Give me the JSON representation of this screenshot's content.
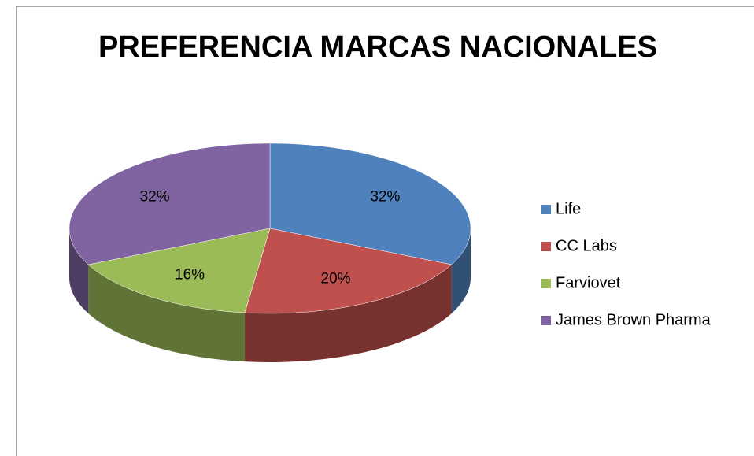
{
  "chart_data": {
    "type": "pie3d",
    "title": "PREFERENCIA MARCAS NACIONALES",
    "categories": [
      "Life",
      "CC Labs",
      "Farviovet",
      "James Brown Pharma"
    ],
    "values": [
      32,
      20,
      16,
      32
    ],
    "value_labels": [
      "32%",
      "20%",
      "16%",
      "32%"
    ],
    "colors": [
      "#4f81bd",
      "#c0504d",
      "#9bbb59",
      "#8064a2"
    ],
    "legend": "right"
  }
}
